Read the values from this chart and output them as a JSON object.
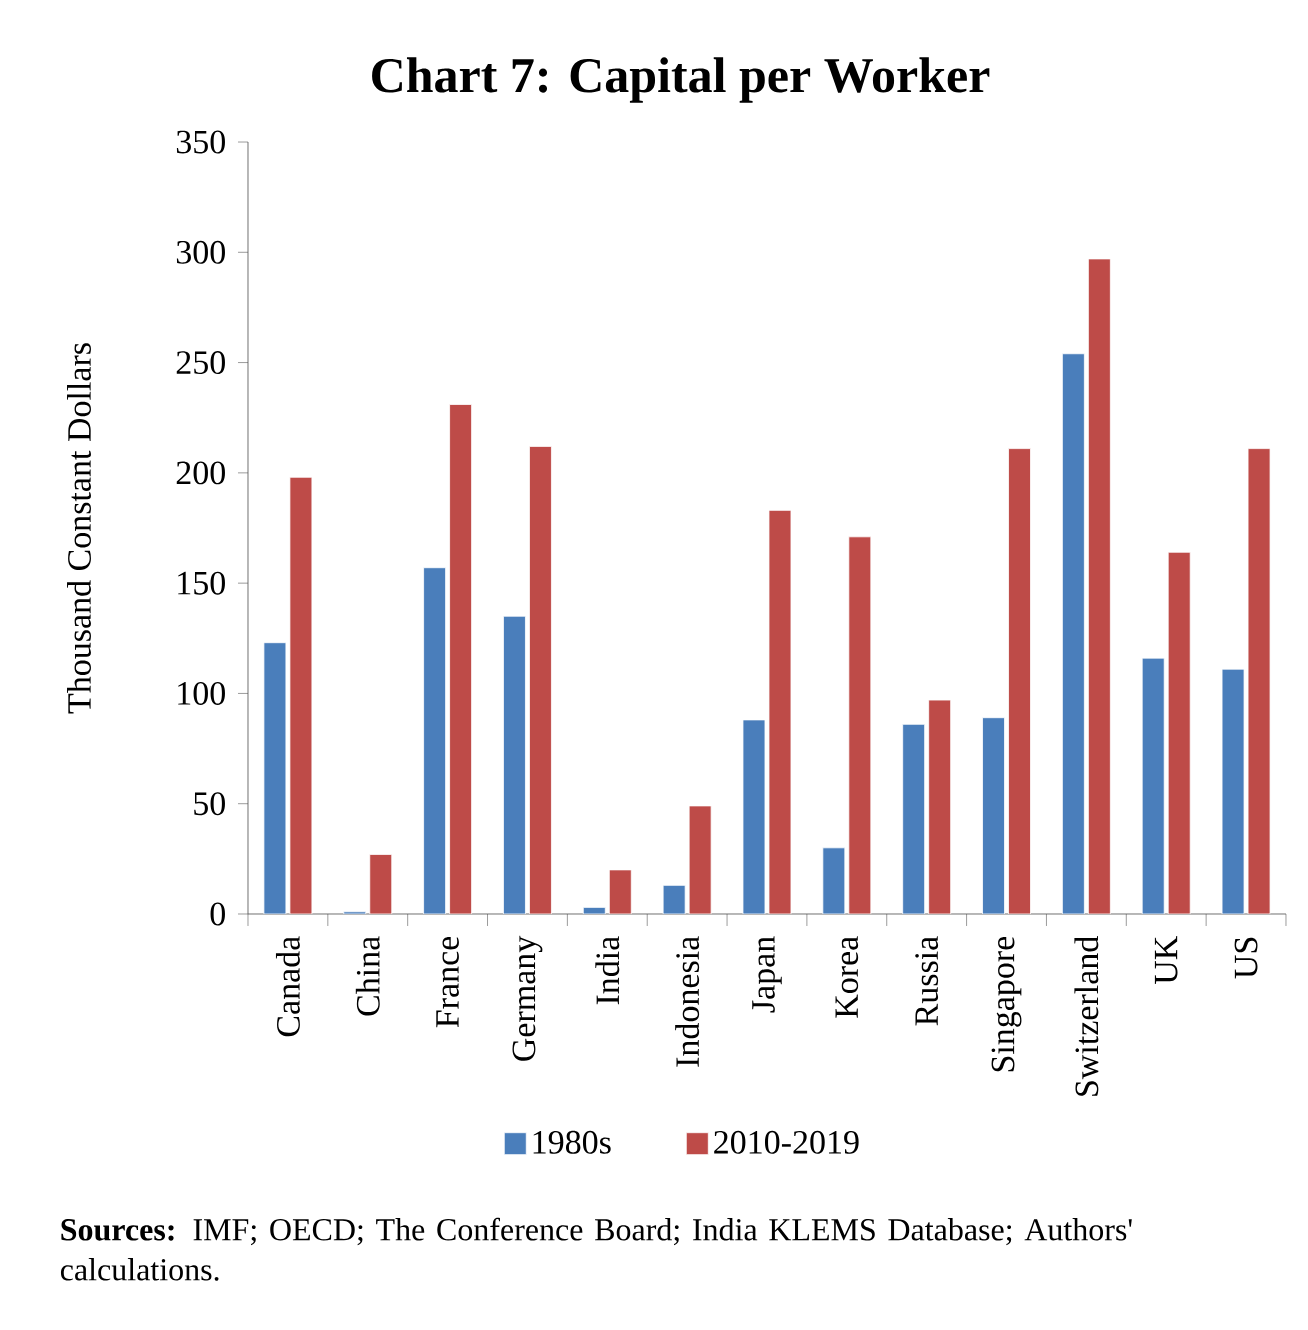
{
  "chart_data": {
    "type": "bar",
    "title": "Chart 7: Capital per Worker",
    "ylabel": "Thousand Constant Dollars",
    "categories": [
      "Canada",
      "China",
      "France",
      "Germany",
      "India",
      "Indonesia",
      "Japan",
      "Korea",
      "Russia",
      "Singapore",
      "Switzerland",
      "UK",
      "US"
    ],
    "series": [
      {
        "name": "1980s",
        "color": "#4a7ebb",
        "values": [
          123,
          1,
          157,
          135,
          3,
          13,
          88,
          30,
          86,
          89,
          254,
          116,
          111
        ]
      },
      {
        "name": "2010-2019",
        "color": "#be4b48",
        "values": [
          198,
          27,
          231,
          212,
          20,
          49,
          183,
          171,
          97,
          211,
          297,
          164,
          211
        ]
      }
    ],
    "ylim": [
      0,
      350
    ],
    "yticks": [
      0,
      50,
      100,
      150,
      200,
      250,
      300,
      350
    ],
    "legend": "bottom",
    "grid": false,
    "annotations": [
      "**Sources:** IMF; OECD; The Conference Board; India KLEMS Database; Authors' calculations."
    ]
  }
}
